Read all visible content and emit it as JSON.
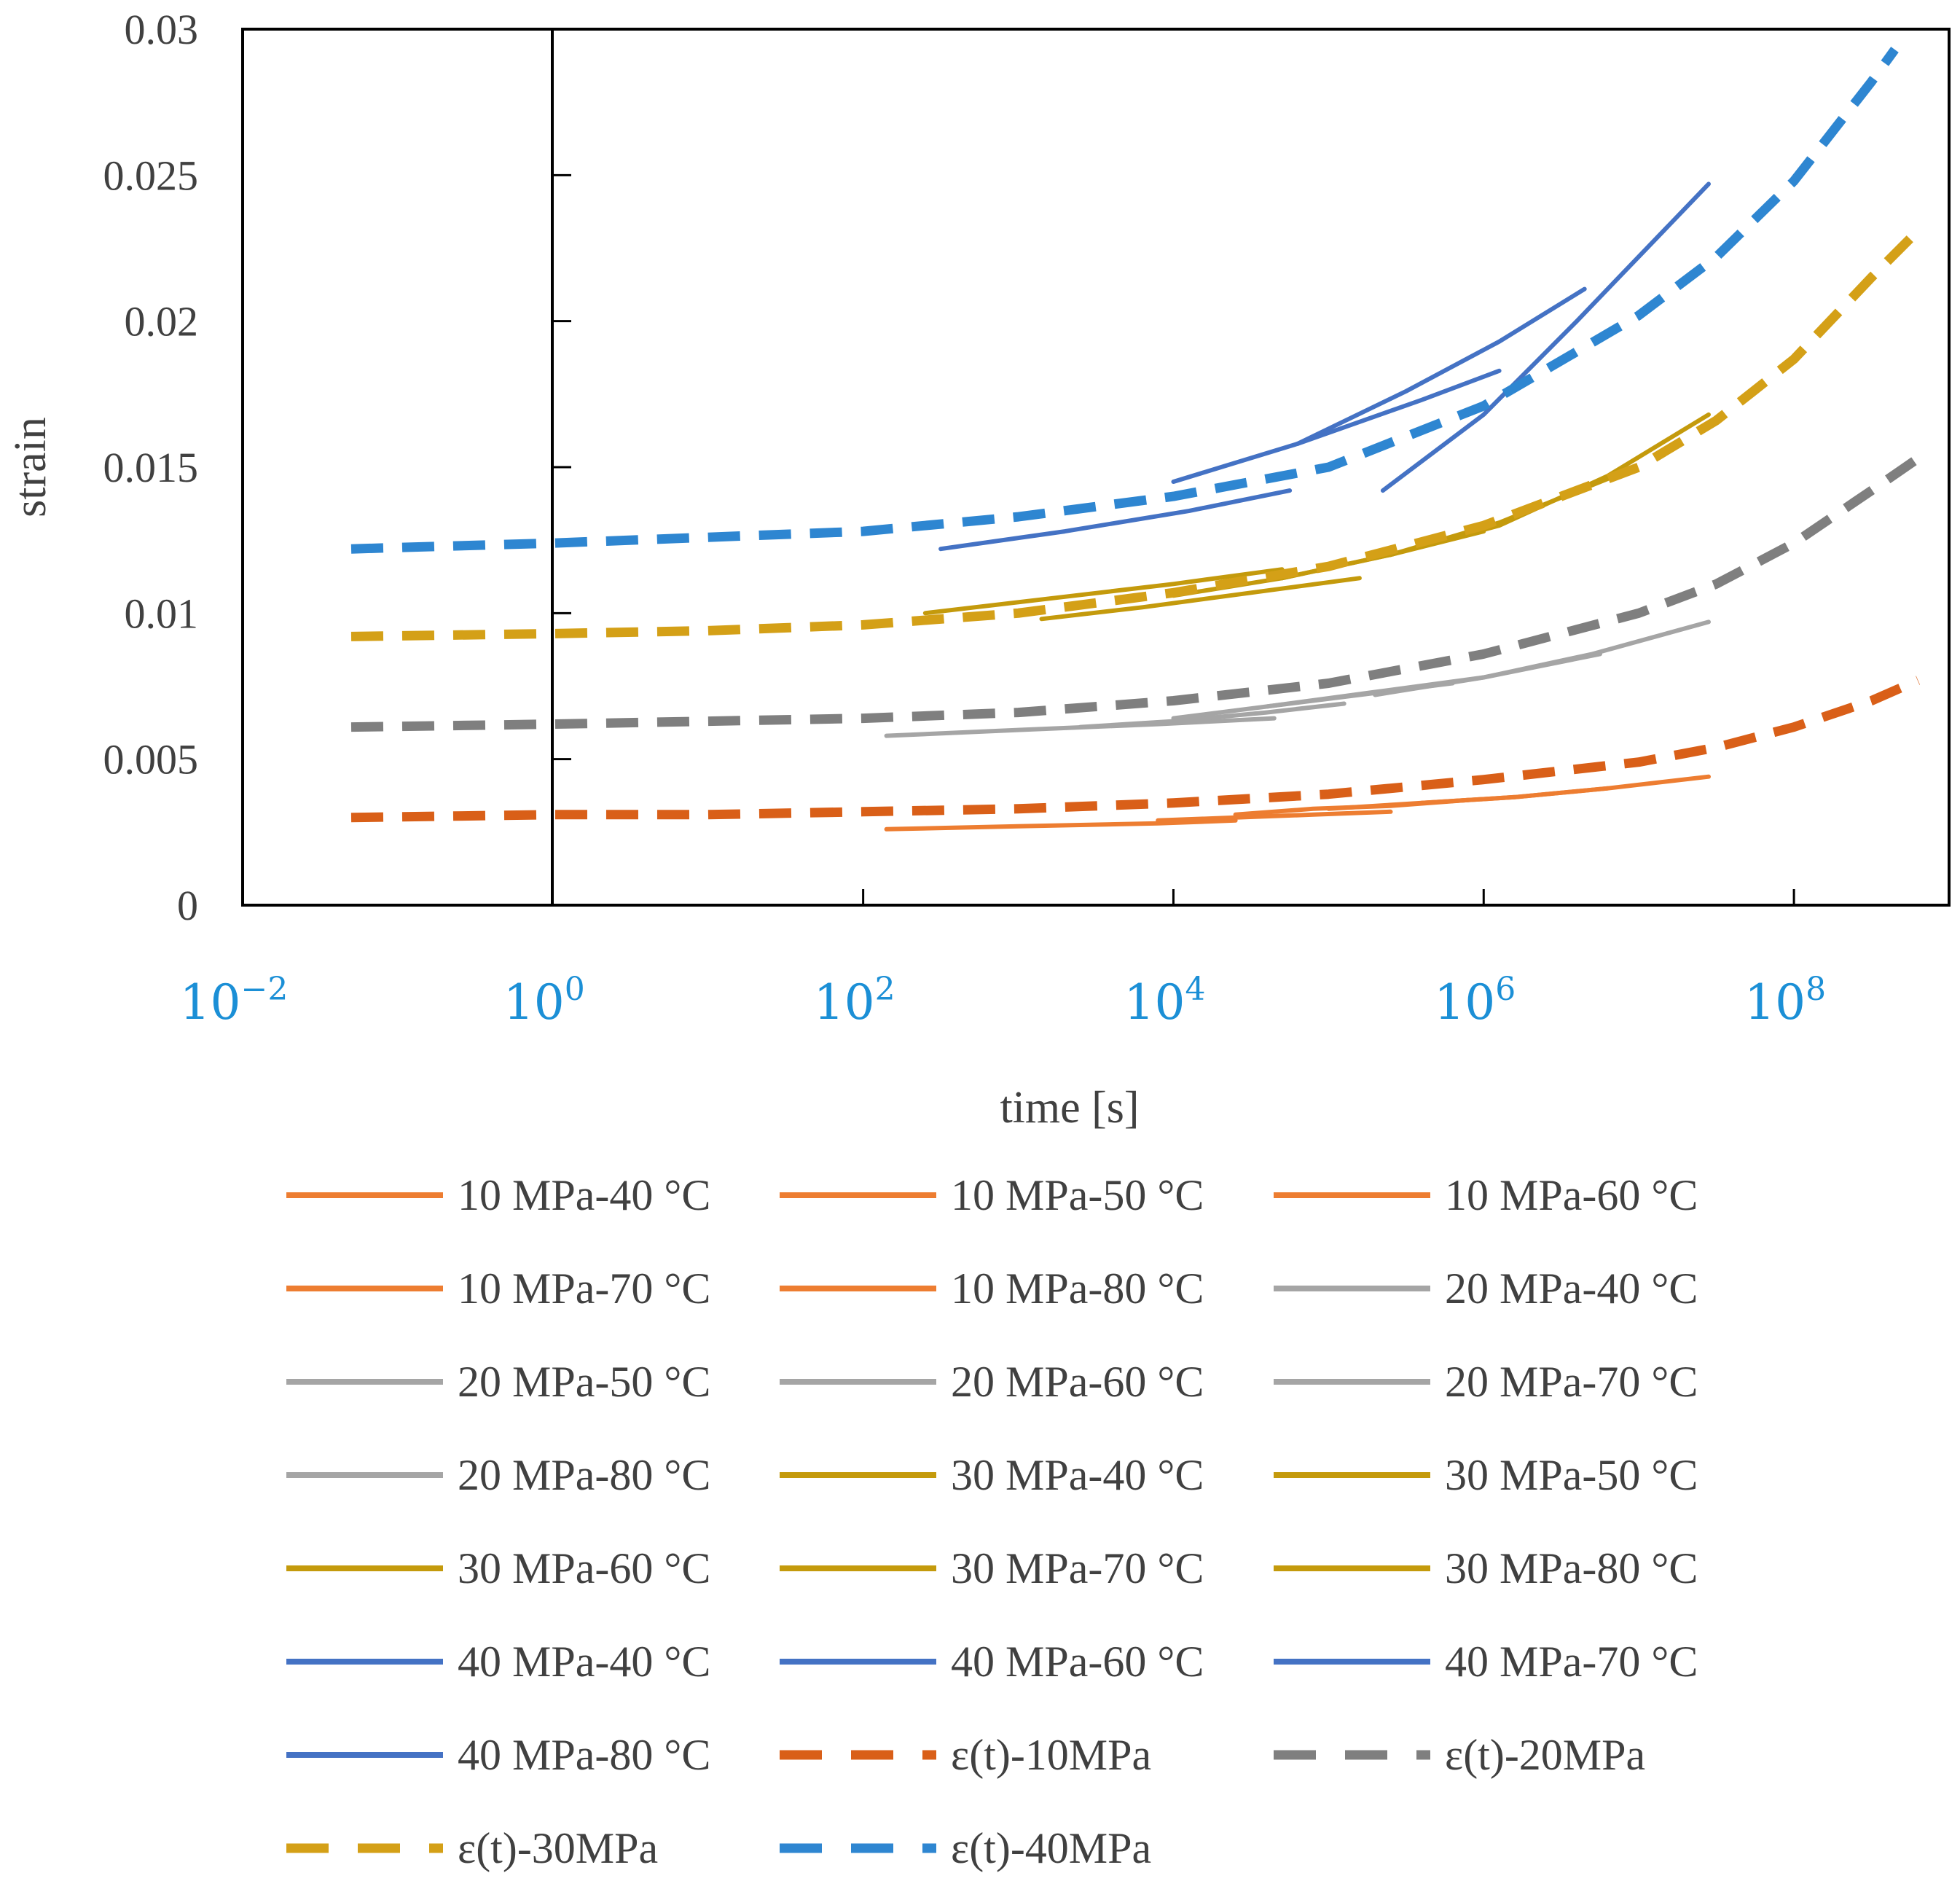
{
  "chart_data": {
    "type": "line",
    "xscale": "log",
    "xlabel": "time [s]",
    "ylabel": "strain",
    "xlim_exp": [
      -2,
      9
    ],
    "ylim": [
      0,
      0.03
    ],
    "y_ticks": [
      0,
      0.005,
      0.01,
      0.015,
      0.02,
      0.025,
      0.03
    ],
    "y_tick_labels": [
      "0",
      "0.005",
      "0.01",
      "0.015",
      "0.02",
      "0.025",
      "0.03"
    ],
    "x_ticks": [
      {
        "exp": -2,
        "base": "10",
        "sup": "−2"
      },
      {
        "exp": 0,
        "base": "10",
        "sup": "0"
      },
      {
        "exp": 2,
        "base": "10",
        "sup": "2"
      },
      {
        "exp": 4,
        "base": "10",
        "sup": "4"
      },
      {
        "exp": 6,
        "base": "10",
        "sup": "6"
      },
      {
        "exp": 8,
        "base": "10",
        "sup": "8"
      }
    ],
    "colors": {
      "10MPa": "#ed7d31",
      "20MPa": "#a5a5a5",
      "30MPa": "#c49a0c",
      "40MPa": "#4472c4",
      "fit10": "#d95f18",
      "fit20": "#7f7f7f",
      "fit30": "#d4a017",
      "fit40": "#2e86d1"
    },
    "series": [
      {
        "name": "10 MPa-40 °C",
        "style": "solid",
        "color": "10MPa",
        "points": [
          [
            2.15,
            0.0026
          ],
          [
            3,
            0.0027
          ],
          [
            3.9,
            0.0028
          ],
          [
            4.4,
            0.0029
          ]
        ]
      },
      {
        "name": "10 MPa-50 °C",
        "style": "solid",
        "color": "10MPa",
        "points": [
          [
            3.9,
            0.0029
          ],
          [
            4.4,
            0.003
          ],
          [
            4.9,
            0.0031
          ],
          [
            5.4,
            0.0032
          ]
        ]
      },
      {
        "name": "10 MPa-60 °C",
        "style": "solid",
        "color": "10MPa",
        "points": [
          [
            4.4,
            0.0031
          ],
          [
            4.9,
            0.0033
          ],
          [
            5.4,
            0.0034
          ],
          [
            5.9,
            0.0036
          ]
        ]
      },
      {
        "name": "10 MPa-70 °C",
        "style": "solid",
        "color": "10MPa",
        "points": [
          [
            5.0,
            0.0033
          ],
          [
            5.6,
            0.0035
          ],
          [
            6.2,
            0.0037
          ],
          [
            6.8,
            0.004
          ]
        ]
      },
      {
        "name": "10 MPa-80 °C",
        "style": "solid",
        "color": "10MPa",
        "points": [
          [
            5.6,
            0.0035
          ],
          [
            6.2,
            0.0037
          ],
          [
            6.8,
            0.004
          ],
          [
            7.45,
            0.0044
          ]
        ]
      },
      {
        "name": "20 MPa-40 °C",
        "style": "solid",
        "color": "20MPa",
        "points": [
          [
            2.15,
            0.0058
          ],
          [
            3,
            0.006
          ],
          [
            3.9,
            0.0062
          ],
          [
            4.65,
            0.0064
          ]
        ]
      },
      {
        "name": "20 MPa-50 °C",
        "style": "solid",
        "color": "20MPa",
        "points": [
          [
            3.4,
            0.0061
          ],
          [
            4.0,
            0.0063
          ],
          [
            4.6,
            0.0066
          ],
          [
            5.1,
            0.0069
          ]
        ]
      },
      {
        "name": "20 MPa-60 °C",
        "style": "solid",
        "color": "20MPa",
        "points": [
          [
            4.0,
            0.0064
          ],
          [
            4.6,
            0.0068
          ],
          [
            5.2,
            0.0072
          ],
          [
            5.8,
            0.0076
          ]
        ]
      },
      {
        "name": "20 MPa-70 °C",
        "style": "solid",
        "color": "20MPa",
        "points": [
          [
            4.6,
            0.0068
          ],
          [
            5.3,
            0.0073
          ],
          [
            6.0,
            0.0078
          ],
          [
            6.75,
            0.0086
          ]
        ]
      },
      {
        "name": "20 MPa-80 °C",
        "style": "solid",
        "color": "20MPa",
        "points": [
          [
            5.3,
            0.0072
          ],
          [
            6.0,
            0.0078
          ],
          [
            6.7,
            0.0086
          ],
          [
            7.45,
            0.0097
          ]
        ]
      },
      {
        "name": "30 MPa-40 °C",
        "style": "solid",
        "color": "30MPa",
        "points": [
          [
            2.4,
            0.01
          ],
          [
            3.2,
            0.0105
          ],
          [
            4.0,
            0.011
          ],
          [
            4.7,
            0.0115
          ]
        ]
      },
      {
        "name": "30 MPa-50 °C",
        "style": "solid",
        "color": "30MPa",
        "points": [
          [
            3.15,
            0.0098
          ],
          [
            3.8,
            0.0102
          ],
          [
            4.5,
            0.0107
          ],
          [
            5.2,
            0.0112
          ]
        ]
      },
      {
        "name": "30 MPa-60 °C",
        "style": "solid",
        "color": "30MPa",
        "points": [
          [
            4.0,
            0.0106
          ],
          [
            4.7,
            0.0112
          ],
          [
            5.4,
            0.012
          ],
          [
            6.0,
            0.0128
          ]
        ]
      },
      {
        "name": "30 MPa-70 °C",
        "style": "solid",
        "color": "30MPa",
        "points": [
          [
            4.7,
            0.0112
          ],
          [
            5.4,
            0.012
          ],
          [
            6.1,
            0.0131
          ],
          [
            6.8,
            0.0146
          ]
        ]
      },
      {
        "name": "30 MPa-80 °C",
        "style": "solid",
        "color": "30MPa",
        "points": [
          [
            5.4,
            0.012
          ],
          [
            6.1,
            0.013
          ],
          [
            6.8,
            0.0147
          ],
          [
            7.45,
            0.0168
          ]
        ]
      },
      {
        "name": "40 MPa-40 °C",
        "style": "solid",
        "color": "40MPa",
        "points": [
          [
            2.5,
            0.0122
          ],
          [
            3.3,
            0.0128
          ],
          [
            4.1,
            0.0135
          ],
          [
            4.75,
            0.0142
          ]
        ]
      },
      {
        "name": "40 MPa-60 °C",
        "style": "solid",
        "color": "40MPa",
        "points": [
          [
            4.0,
            0.0145
          ],
          [
            4.8,
            0.0158
          ],
          [
            5.6,
            0.0173
          ],
          [
            6.1,
            0.0183
          ]
        ]
      },
      {
        "name": "40 MPa-70 °C",
        "style": "solid",
        "color": "40MPa",
        "points": [
          [
            4.8,
            0.0158
          ],
          [
            5.5,
            0.0176
          ],
          [
            6.1,
            0.0193
          ],
          [
            6.65,
            0.0211
          ]
        ]
      },
      {
        "name": "40 MPa-80 °C",
        "style": "solid",
        "color": "40MPa",
        "points": [
          [
            5.35,
            0.0142
          ],
          [
            6.0,
            0.0168
          ],
          [
            6.6,
            0.02
          ],
          [
            7.45,
            0.0247
          ]
        ]
      },
      {
        "name": "ε(t)-10MPa",
        "style": "dashed",
        "color": "fit10",
        "points": [
          [
            -1.3,
            0.003
          ],
          [
            0,
            0.0031
          ],
          [
            1,
            0.0031
          ],
          [
            2,
            0.0032
          ],
          [
            3,
            0.0033
          ],
          [
            4,
            0.0035
          ],
          [
            5,
            0.0038
          ],
          [
            6,
            0.0043
          ],
          [
            7,
            0.0049
          ],
          [
            7.5,
            0.0054
          ],
          [
            8,
            0.0061
          ],
          [
            8.5,
            0.007
          ],
          [
            8.8,
            0.0077
          ]
        ]
      },
      {
        "name": "ε(t)-20MPa",
        "style": "dashed",
        "color": "fit20",
        "points": [
          [
            -1.3,
            0.0061
          ],
          [
            0,
            0.0062
          ],
          [
            1,
            0.0063
          ],
          [
            2,
            0.0064
          ],
          [
            3,
            0.0066
          ],
          [
            4,
            0.007
          ],
          [
            5,
            0.0076
          ],
          [
            6,
            0.0086
          ],
          [
            7,
            0.01
          ],
          [
            7.5,
            0.011
          ],
          [
            8,
            0.0124
          ],
          [
            8.5,
            0.0142
          ],
          [
            8.8,
            0.0153
          ]
        ]
      },
      {
        "name": "ε(t)-30MPa",
        "style": "dashed",
        "color": "fit30",
        "points": [
          [
            -1.3,
            0.0092
          ],
          [
            0,
            0.0093
          ],
          [
            1,
            0.0094
          ],
          [
            2,
            0.0096
          ],
          [
            3,
            0.01
          ],
          [
            4,
            0.0107
          ],
          [
            5,
            0.0116
          ],
          [
            6,
            0.013
          ],
          [
            7,
            0.015
          ],
          [
            7.5,
            0.0166
          ],
          [
            8,
            0.0187
          ],
          [
            8.5,
            0.0215
          ],
          [
            8.8,
            0.0231
          ]
        ]
      },
      {
        "name": "ε(t)-40MPa",
        "style": "dashed",
        "color": "fit40",
        "points": [
          [
            -1.3,
            0.0122
          ],
          [
            0,
            0.0124
          ],
          [
            1,
            0.0126
          ],
          [
            2,
            0.0128
          ],
          [
            3,
            0.0133
          ],
          [
            4,
            0.014
          ],
          [
            5,
            0.015
          ],
          [
            6,
            0.0171
          ],
          [
            7,
            0.0202
          ],
          [
            7.5,
            0.0222
          ],
          [
            8,
            0.0248
          ],
          [
            8.5,
            0.0282
          ],
          [
            8.65,
            0.0293
          ]
        ]
      }
    ]
  }
}
